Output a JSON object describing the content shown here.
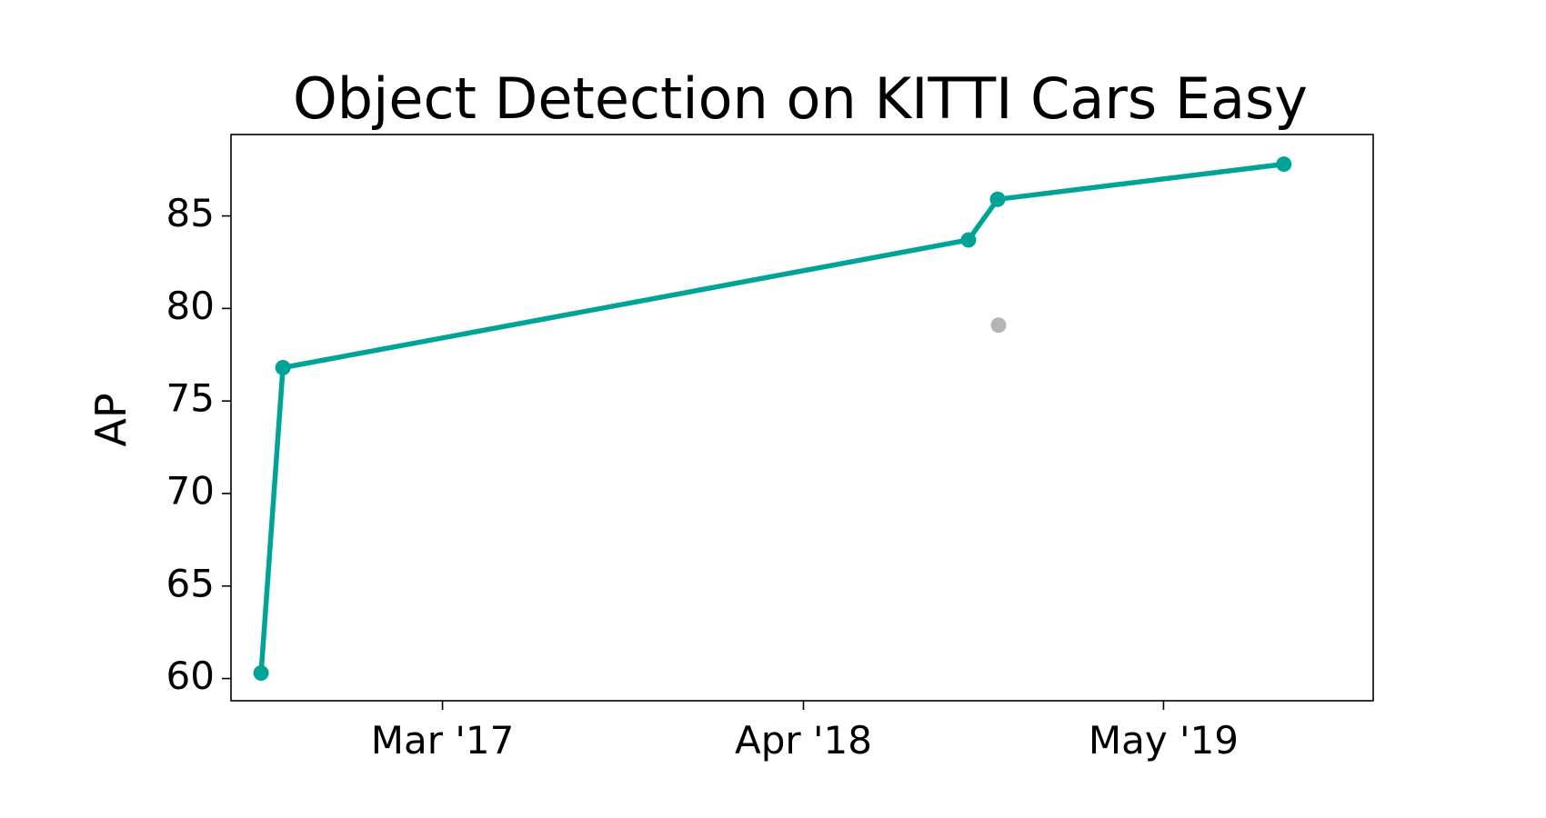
{
  "chart_data": {
    "type": "line",
    "title": "Object Detection on KITTI Cars Easy",
    "xlabel": "",
    "ylabel": "AP",
    "x_ticks": [
      {
        "date": "2017-03-01",
        "label": "Mar '17"
      },
      {
        "date": "2018-04-01",
        "label": "Apr '18"
      },
      {
        "date": "2019-05-01",
        "label": "May '19"
      }
    ],
    "y_ticks": [
      60,
      65,
      70,
      75,
      80,
      85
    ],
    "xlim": [
      "2016-07-12",
      "2019-12-17"
    ],
    "ylim": [
      58.8,
      89.4
    ],
    "grid": false,
    "series": [
      {
        "color": "#00a496",
        "points": [
          {
            "date": "2016-08-14",
            "value": 60.3
          },
          {
            "date": "2016-09-07",
            "value": 76.8
          },
          {
            "date": "2018-09-29",
            "value": 83.7
          },
          {
            "date": "2018-10-31",
            "value": 85.9
          },
          {
            "date": "2019-09-10",
            "value": 87.8
          }
        ]
      },
      {
        "color": "#b5b5b5",
        "points": [
          {
            "date": "2018-11-01",
            "value": 79.1
          }
        ]
      }
    ]
  }
}
